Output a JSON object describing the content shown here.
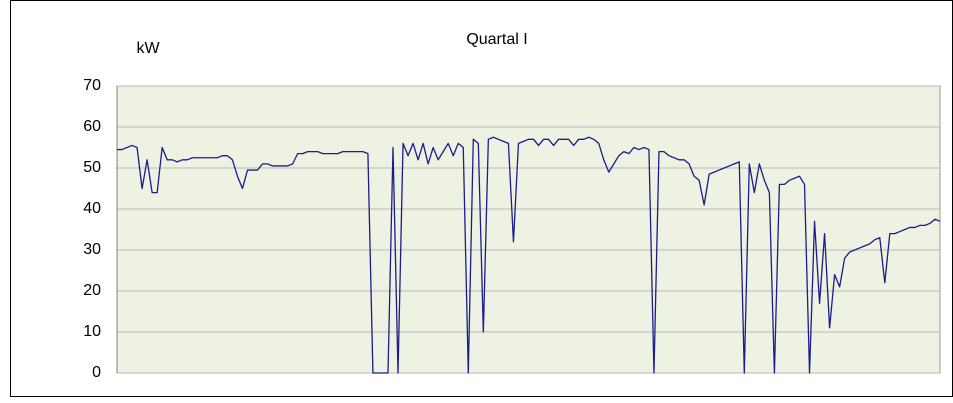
{
  "chart_data": {
    "type": "line",
    "title": "Quartal I",
    "ylabel": "kW",
    "color": "#1c1c8a",
    "ylim": [
      0,
      70
    ],
    "yticks": [
      0,
      10,
      20,
      30,
      40,
      50,
      60,
      70
    ],
    "grid": true,
    "values": [
      54.5,
      54.5,
      55,
      55.5,
      55,
      45,
      52,
      44,
      44,
      55,
      52,
      52,
      51.5,
      52,
      52,
      52.5,
      52.5,
      52.5,
      52.5,
      52.5,
      52.5,
      53,
      53,
      52,
      48,
      45,
      49.5,
      49.5,
      49.5,
      51,
      51,
      50.5,
      50.5,
      50.5,
      50.5,
      51,
      53.5,
      53.5,
      54,
      54,
      54,
      53.5,
      53.5,
      53.5,
      53.5,
      54,
      54,
      54,
      54,
      54,
      53.5,
      0,
      0,
      0,
      0,
      55,
      0,
      56,
      53,
      56,
      52,
      56,
      51,
      55,
      52,
      54,
      56,
      53,
      56,
      55,
      0,
      57,
      56,
      10,
      57,
      57.5,
      57,
      56.5,
      56,
      32,
      56,
      56.5,
      57,
      57,
      55.5,
      57,
      57,
      55.5,
      57,
      57,
      57,
      55.5,
      57,
      57,
      57.5,
      57,
      56,
      52,
      49,
      51,
      53,
      54,
      53.5,
      55,
      54.5,
      55,
      54.5,
      0,
      54,
      54,
      53,
      52.5,
      52,
      52,
      51,
      48,
      47,
      41,
      48.5,
      49,
      49.5,
      50,
      50.5,
      51,
      51.5,
      0,
      51,
      44,
      51,
      47,
      44,
      0,
      46,
      46,
      47,
      47.5,
      48,
      46,
      0,
      37,
      17,
      34,
      11,
      24,
      21,
      28,
      29.5,
      30,
      30.5,
      31,
      31.5,
      32.5,
      33,
      22,
      34,
      34,
      34.5,
      35,
      35.5,
      35.5,
      36,
      36,
      36.5,
      37.5,
      37
    ]
  }
}
